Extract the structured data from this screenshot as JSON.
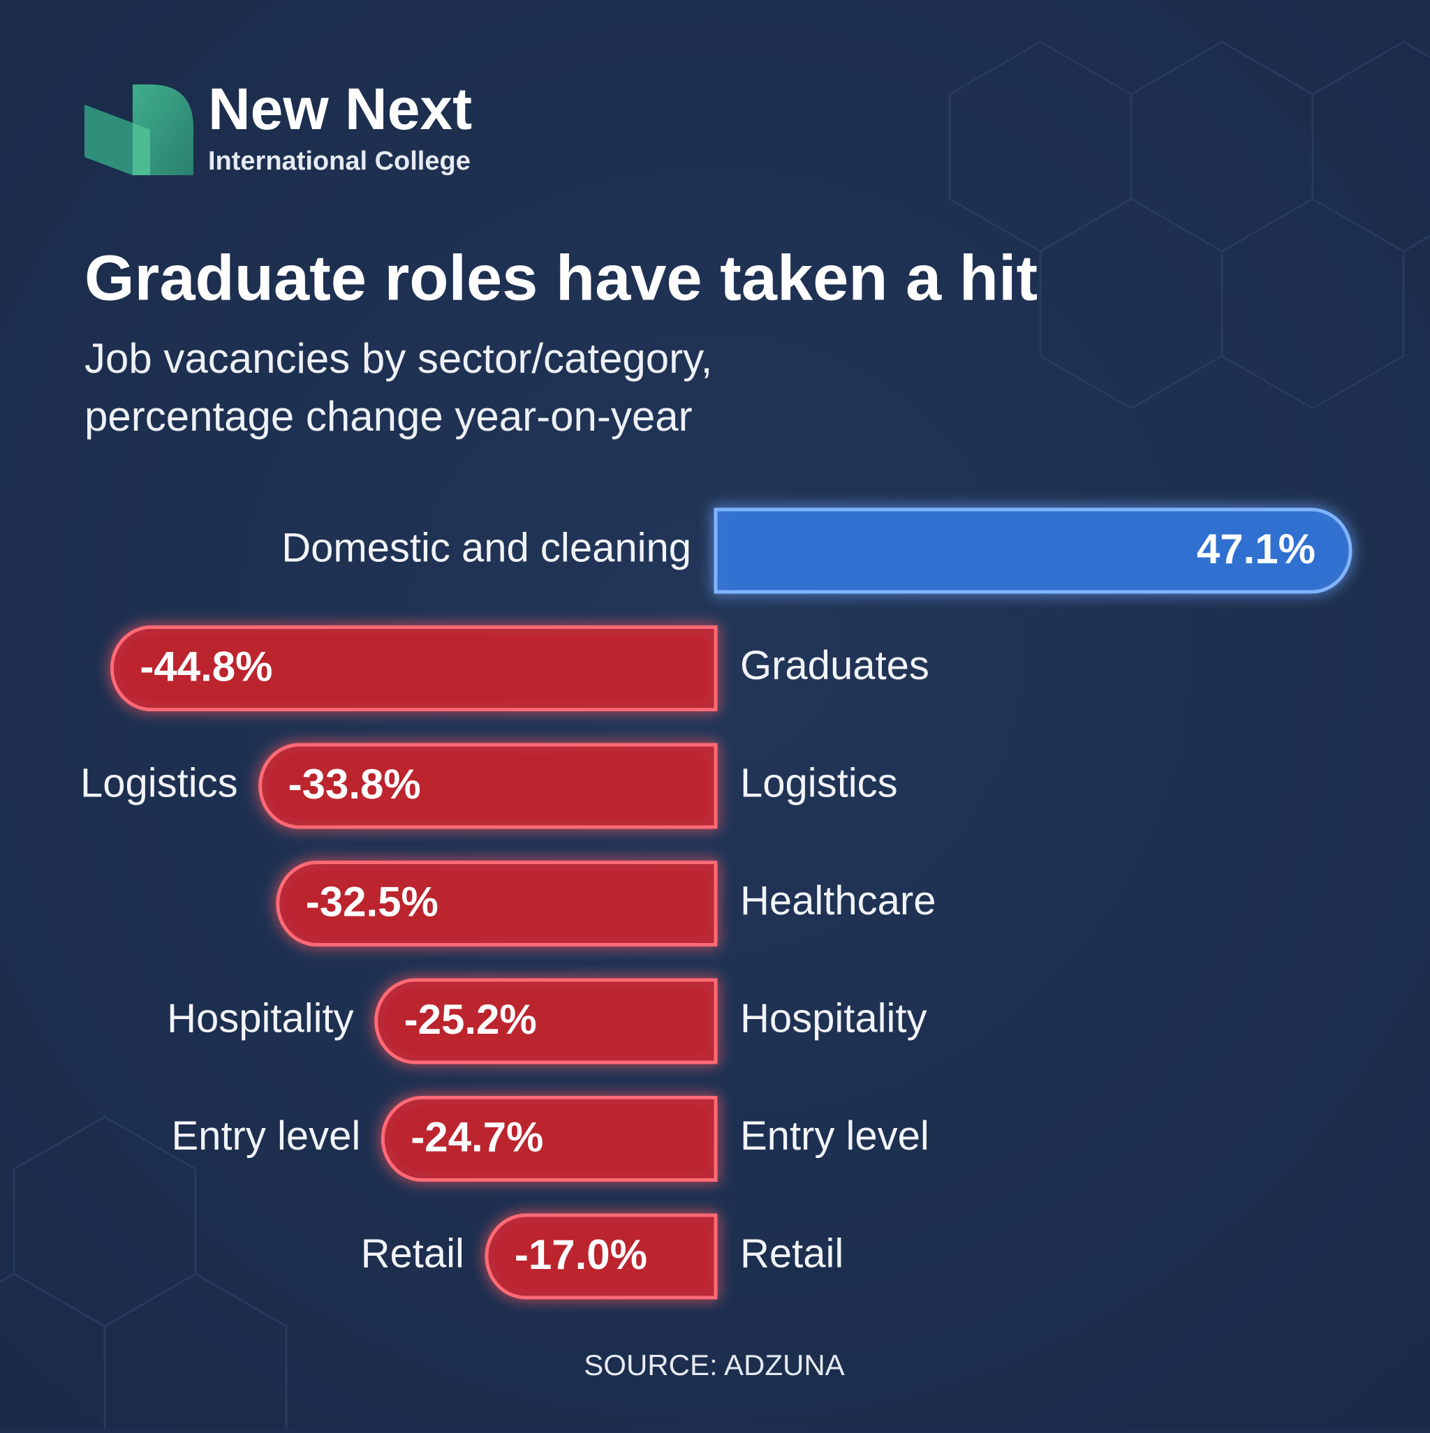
{
  "header": {
    "brand": "New Next",
    "tagline": "International College"
  },
  "chart_data": {
    "type": "diverging-bar",
    "title": "Graduate roles have taken a hit",
    "subtitle": [
      "Job vacancies by sector/category,",
      "percentage change year-on-year"
    ],
    "categories": [
      "Domestic and cleaning",
      "Graduates",
      "Logistics",
      "Healthcare",
      "Hospitality",
      "Entry level",
      "Retail"
    ],
    "values": [
      47.1,
      -44.8,
      -33.8,
      -32.5,
      -25.2,
      -24.7,
      -17.0
    ],
    "value_labels": [
      "47.1%",
      "-44.8%",
      "-33.8%",
      "-32.5%",
      "-25.2%",
      "-24.7%",
      "-17.0%"
    ],
    "color_positive": "#2f74d8",
    "color_negative": "#c7202d",
    "source": "SOURCE: ADZUNA"
  }
}
